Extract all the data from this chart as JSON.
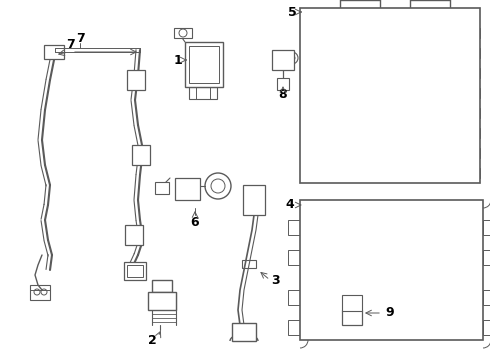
{
  "bg_color": "#ffffff",
  "line_color": "#5a5a5a",
  "label_color": "#000000",
  "fig_width": 4.9,
  "fig_height": 3.6,
  "dpi": 100
}
